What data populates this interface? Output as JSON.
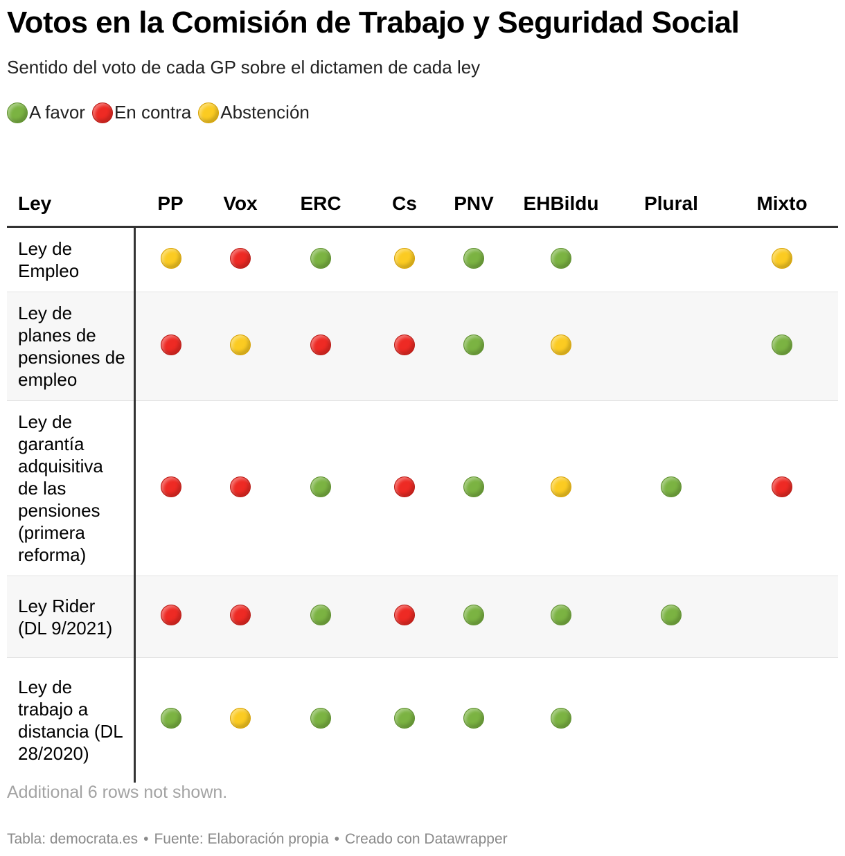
{
  "title": "Votos en la Comisión de Trabajo y Seguridad Social",
  "subtitle": "Sentido del voto de cada GP sobre el dictamen de cada ley",
  "colors": {
    "green": "#7bb342",
    "red": "#ee2a24",
    "yellow": "#fbcb22"
  },
  "legend": [
    {
      "label": "A favor",
      "color": "green"
    },
    {
      "label": "En contra",
      "color": "red"
    },
    {
      "label": "Abstención",
      "color": "yellow"
    }
  ],
  "chart_data": {
    "type": "table",
    "columns": [
      "Ley",
      "PP",
      "Vox",
      "ERC",
      "Cs",
      "PNV",
      "EHBildu",
      "Plural",
      "Mixto"
    ],
    "rows": [
      {
        "ley": "Ley de Empleo",
        "votes": [
          "yellow",
          "red",
          "green",
          "yellow",
          "green",
          "green",
          "",
          "yellow"
        ]
      },
      {
        "ley": "Ley de planes de pensiones de empleo",
        "votes": [
          "red",
          "yellow",
          "red",
          "red",
          "green",
          "yellow",
          "",
          "green"
        ]
      },
      {
        "ley": "Ley de garantía adquisitiva de las pensiones (primera reforma)",
        "votes": [
          "red",
          "red",
          "green",
          "red",
          "green",
          "yellow",
          "green",
          "red"
        ]
      },
      {
        "ley": "Ley Rider (DL 9/2021)",
        "votes": [
          "red",
          "red",
          "green",
          "red",
          "green",
          "green",
          "green",
          ""
        ]
      },
      {
        "ley": "Ley de trabajo a distancia (DL 28/2020)",
        "votes": [
          "green",
          "yellow",
          "green",
          "green",
          "green",
          "green",
          "",
          ""
        ]
      }
    ]
  },
  "note": "Additional 6 rows not shown.",
  "footer": {
    "tabla": "Tabla: democrata.es",
    "fuente": "Fuente: Elaboración propia",
    "creado": "Creado con Datawrapper",
    "separator": "•"
  }
}
